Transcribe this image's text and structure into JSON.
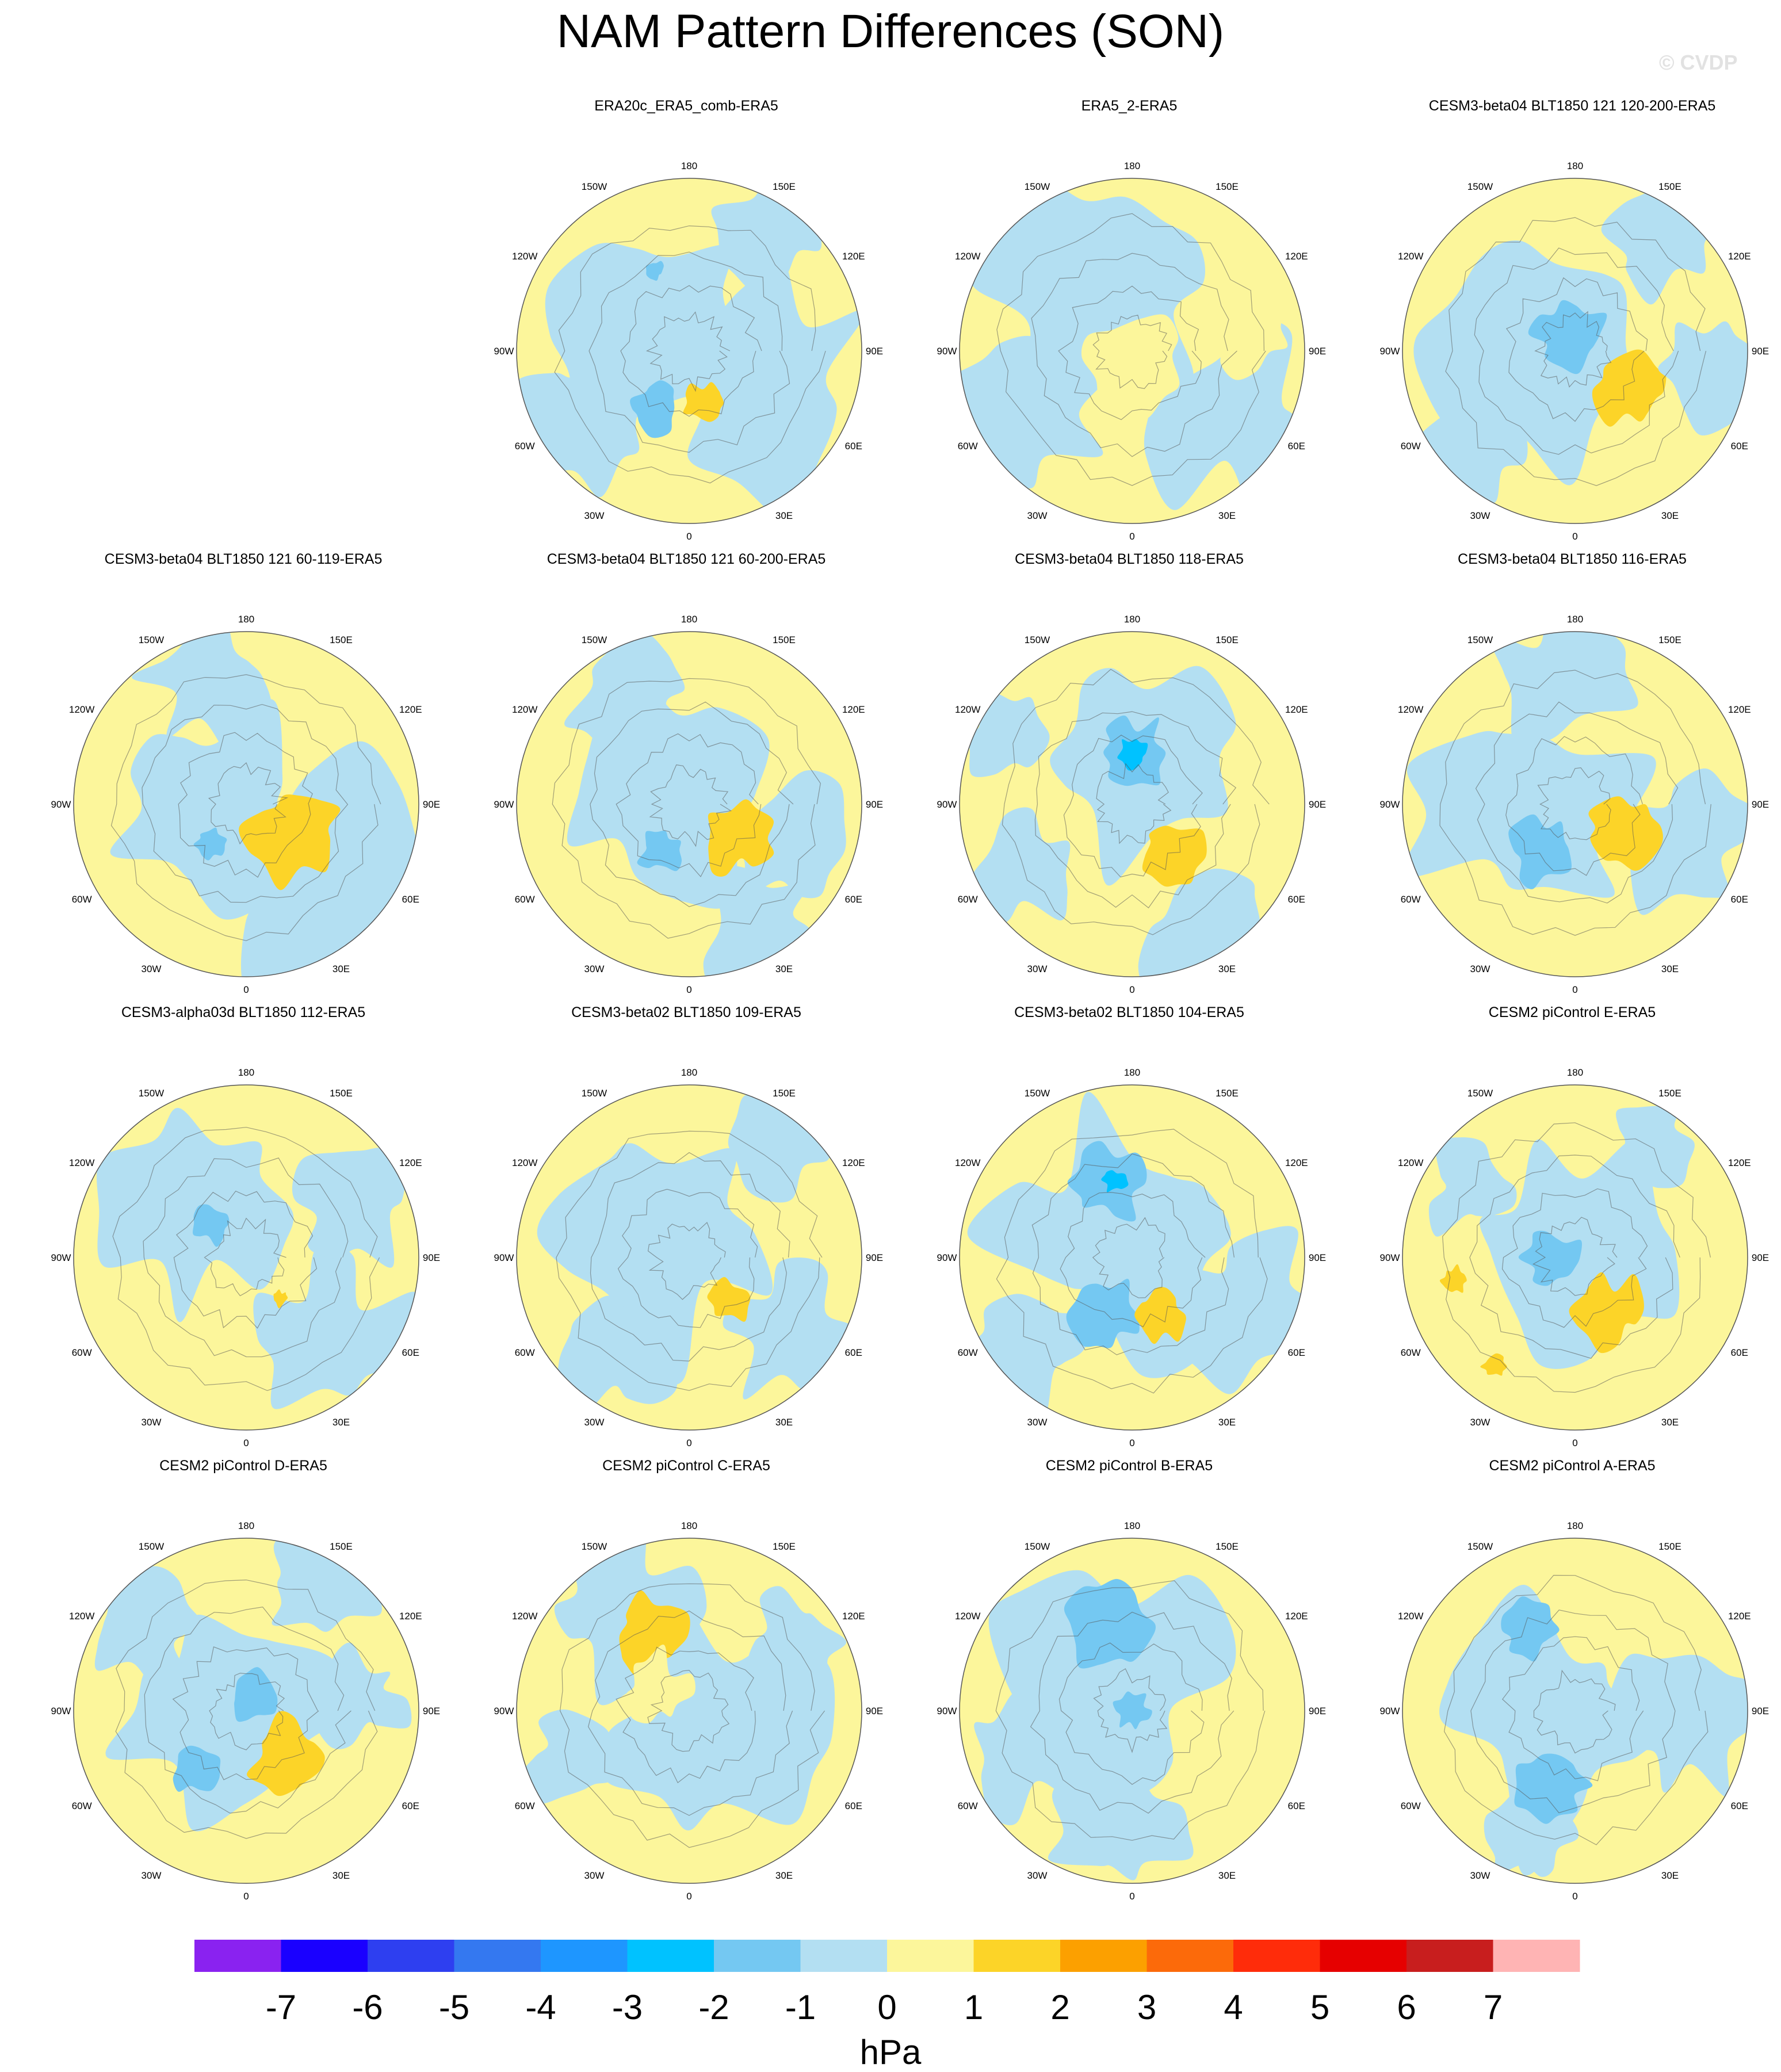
{
  "title": "NAM Pattern Differences (SON)",
  "watermark": "© CVDP",
  "chart_data": {
    "type": "polar-contour-maps",
    "projection": "north-polar-stereographic",
    "background_value_color": "#fcf69b",
    "longitude_labels": [
      "180",
      "150E",
      "120E",
      "90E",
      "60E",
      "30E",
      "0",
      "30W",
      "60W",
      "90W",
      "120W",
      "150W"
    ],
    "panels": [
      {
        "title": "ERA20c_ERA5_comb-ERA5",
        "row": 0,
        "col": 1
      },
      {
        "title": "ERA5_2-ERA5",
        "row": 0,
        "col": 2
      },
      {
        "title": "CESM3-beta04 BLT1850 121 120-200-ERA5",
        "row": 0,
        "col": 3
      },
      {
        "title": "CESM3-beta04 BLT1850 121 60-119-ERA5",
        "row": 1,
        "col": 0
      },
      {
        "title": "CESM3-beta04 BLT1850 121 60-200-ERA5",
        "row": 1,
        "col": 1
      },
      {
        "title": "CESM3-beta04 BLT1850 118-ERA5",
        "row": 1,
        "col": 2
      },
      {
        "title": "CESM3-beta04 BLT1850 116-ERA5",
        "row": 1,
        "col": 3
      },
      {
        "title": "CESM3-alpha03d BLT1850 112-ERA5",
        "row": 2,
        "col": 0
      },
      {
        "title": "CESM3-beta02 BLT1850 109-ERA5",
        "row": 2,
        "col": 1
      },
      {
        "title": "CESM3-beta02 BLT1850 104-ERA5",
        "row": 2,
        "col": 2
      },
      {
        "title": "CESM2 piControl E-ERA5",
        "row": 2,
        "col": 3
      },
      {
        "title": "CESM2 piControl D-ERA5",
        "row": 3,
        "col": 0
      },
      {
        "title": "CESM2 piControl C-ERA5",
        "row": 3,
        "col": 1
      },
      {
        "title": "CESM2 piControl B-ERA5",
        "row": 3,
        "col": 2
      },
      {
        "title": "CESM2 piControl A-ERA5",
        "row": 3,
        "col": 3
      }
    ],
    "colorbar": {
      "unit": "hPa",
      "ticks": [
        "-7",
        "-6",
        "-5",
        "-4",
        "-3",
        "-2",
        "-1",
        "0",
        "1",
        "2",
        "3",
        "4",
        "5",
        "6",
        "7"
      ],
      "colors": [
        "#8a22f0",
        "#1a00ff",
        "#2e3ff0",
        "#3478f0",
        "#1e96ff",
        "#00c2ff",
        "#74c8f2",
        "#b3dff2",
        "#fcf69b",
        "#fcd428",
        "#fca000",
        "#fc6a0a",
        "#ff2c0a",
        "#e60000",
        "#c81e1e",
        "#ffb4b4"
      ]
    }
  }
}
